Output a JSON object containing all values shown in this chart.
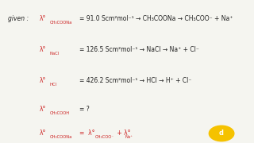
{
  "background_color": "#f5f5f0",
  "text_color": "#222222",
  "red_color": "#cc2222",
  "given_text": "given :",
  "line1_left": "λ°",
  "line1_sub": "CH₃COONa",
  "line1_mid": "= 91.0 Scm²mol⁻¹  →  CH₃COONa → CH₃COO⁻ + Na⁺",
  "line2_left": "λ°",
  "line2_sub": "NaCl",
  "line2_mid": "= 126.5 Scm²mol⁻¹  →  NaCl → Na⁺ + Cl⁻",
  "line3_left": "λ°",
  "line3_sub": "HCl",
  "line3_mid": "= 426.2 Scm²mol⁻¹  →  HCl → H⁺ + Cl⁻",
  "line4_left": "λ°",
  "line4_sub": "CH₃COOH",
  "line4_mid": "= ?",
  "line5_left": "λ°",
  "line5_sub": "CH₃COONa",
  "line5_mid": "=  λ°",
  "line5_sub2": "CH₃COO⁻",
  "line5_end": " + λ°",
  "line5_sub3": "Na⁺",
  "figsize": [
    3.2,
    1.8
  ],
  "dpi": 100
}
